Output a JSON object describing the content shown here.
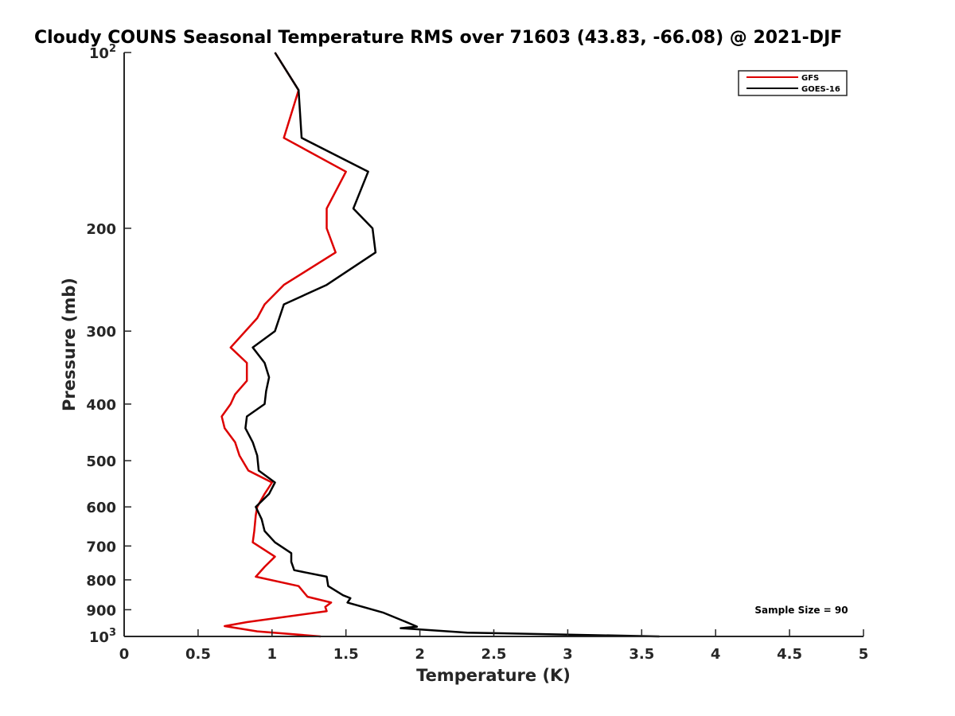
{
  "chart_data": {
    "type": "line",
    "title": "Cloudy COUNS Seasonal Temperature RMS over 71603 (43.83, -66.08) @ 2021-DJF",
    "xlabel": "Temperature (K)",
    "ylabel": "Pressure (mb)",
    "xlim": [
      0,
      5
    ],
    "ylim": [
      100,
      1000
    ],
    "yscale": "log",
    "y_reversed": true,
    "grid": false,
    "legend_position": "top-right",
    "x_ticks": [
      "0",
      "0.5",
      "1",
      "1.5",
      "2",
      "2.5",
      "3",
      "3.5",
      "4",
      "4.5",
      "5"
    ],
    "x_tick_values": [
      0,
      0.5,
      1,
      1.5,
      2,
      2.5,
      3,
      3.5,
      4,
      4.5,
      5
    ],
    "y_ticks": [
      {
        "value": 100,
        "base": "10",
        "exp": "2"
      },
      {
        "value": 200,
        "label": "200"
      },
      {
        "value": 300,
        "label": "300"
      },
      {
        "value": 400,
        "label": "400"
      },
      {
        "value": 500,
        "label": "500"
      },
      {
        "value": 600,
        "label": "600"
      },
      {
        "value": 700,
        "label": "700"
      },
      {
        "value": 800,
        "label": "800"
      },
      {
        "value": 900,
        "label": "900"
      },
      {
        "value": 1000,
        "base": "10",
        "exp": "3"
      }
    ],
    "annotation": "Sample Size = 90",
    "series": [
      {
        "name": "GFS",
        "color": "#dd0000",
        "points": [
          [
            1.02,
            100
          ],
          [
            1.18,
            116
          ],
          [
            1.08,
            140
          ],
          [
            1.5,
            160
          ],
          [
            1.37,
            185
          ],
          [
            1.37,
            200
          ],
          [
            1.43,
            220
          ],
          [
            1.08,
            250
          ],
          [
            0.95,
            270
          ],
          [
            0.9,
            285
          ],
          [
            0.72,
            320
          ],
          [
            0.83,
            340
          ],
          [
            0.83,
            365
          ],
          [
            0.75,
            385
          ],
          [
            0.72,
            400
          ],
          [
            0.66,
            420
          ],
          [
            0.68,
            440
          ],
          [
            0.75,
            465
          ],
          [
            0.78,
            490
          ],
          [
            0.84,
            520
          ],
          [
            1.0,
            545
          ],
          [
            0.95,
            570
          ],
          [
            0.9,
            600
          ],
          [
            0.89,
            620
          ],
          [
            0.88,
            660
          ],
          [
            0.87,
            690
          ],
          [
            1.02,
            730
          ],
          [
            0.95,
            760
          ],
          [
            0.89,
            790
          ],
          [
            1.18,
            820
          ],
          [
            1.24,
            855
          ],
          [
            1.4,
            875
          ],
          [
            1.36,
            890
          ],
          [
            1.37,
            905
          ],
          [
            0.83,
            945
          ],
          [
            0.68,
            960
          ],
          [
            0.9,
            980
          ],
          [
            1.33,
            1000
          ]
        ]
      },
      {
        "name": "GOES-16",
        "color": "#000000",
        "points": [
          [
            1.02,
            100
          ],
          [
            1.18,
            116
          ],
          [
            1.2,
            140
          ],
          [
            1.65,
            160
          ],
          [
            1.55,
            185
          ],
          [
            1.68,
            200
          ],
          [
            1.7,
            220
          ],
          [
            1.37,
            250
          ],
          [
            1.08,
            270
          ],
          [
            1.02,
            300
          ],
          [
            0.87,
            320
          ],
          [
            0.95,
            340
          ],
          [
            0.98,
            360
          ],
          [
            0.96,
            380
          ],
          [
            0.95,
            400
          ],
          [
            0.83,
            420
          ],
          [
            0.82,
            440
          ],
          [
            0.87,
            465
          ],
          [
            0.9,
            490
          ],
          [
            0.91,
            520
          ],
          [
            1.02,
            545
          ],
          [
            0.98,
            570
          ],
          [
            0.89,
            600
          ],
          [
            0.93,
            630
          ],
          [
            0.95,
            660
          ],
          [
            1.02,
            690
          ],
          [
            1.13,
            720
          ],
          [
            1.13,
            745
          ],
          [
            1.15,
            770
          ],
          [
            1.37,
            790
          ],
          [
            1.38,
            820
          ],
          [
            1.48,
            850
          ],
          [
            1.53,
            860
          ],
          [
            1.51,
            875
          ],
          [
            1.75,
            910
          ],
          [
            1.93,
            950
          ],
          [
            1.98,
            962
          ],
          [
            1.87,
            968
          ],
          [
            2.32,
            985
          ],
          [
            3.62,
            1000
          ]
        ]
      }
    ]
  }
}
